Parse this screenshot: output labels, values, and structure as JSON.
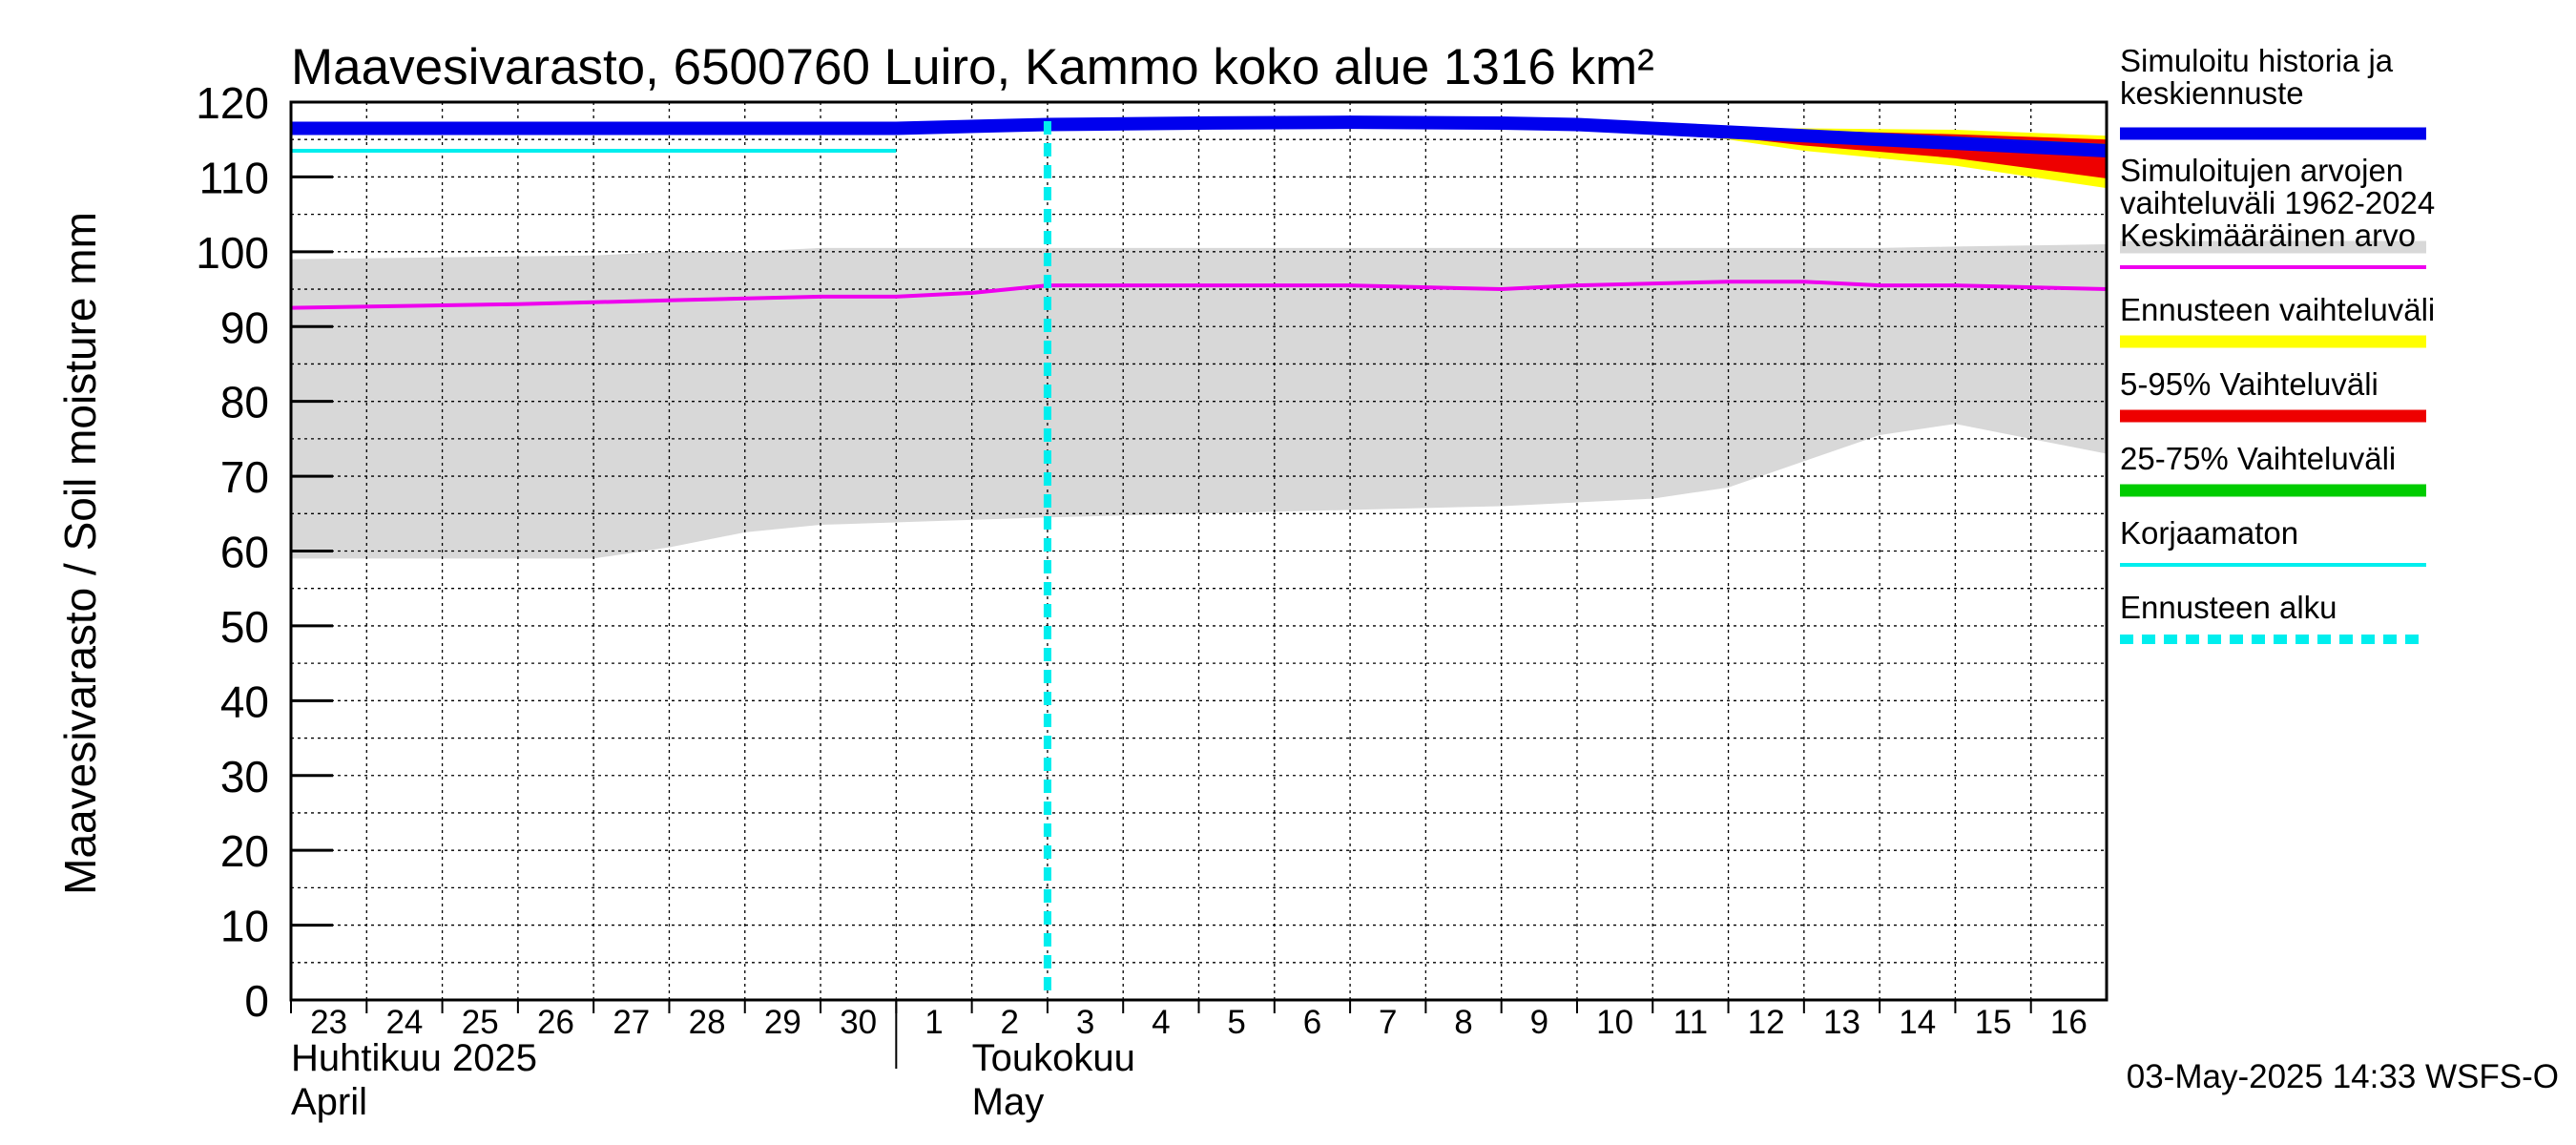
{
  "chart_data": {
    "type": "area",
    "title": "Maavesivarasto, 6500760 Luiro, Kammo koko alue 1316 km²",
    "ylabel": "Maavesivarasto / Soil moisture   mm",
    "ylim": [
      0,
      120
    ],
    "yticks": [
      0,
      10,
      20,
      30,
      40,
      50,
      60,
      70,
      80,
      90,
      100,
      110,
      120
    ],
    "grid": true,
    "legend_position": "right",
    "x_start": "2025-04-23",
    "x_end": "2025-05-17",
    "day_labels": [
      {
        "date": "2025-04-23",
        "label": "23"
      },
      {
        "date": "2025-04-24",
        "label": "24"
      },
      {
        "date": "2025-04-25",
        "label": "25"
      },
      {
        "date": "2025-04-26",
        "label": "26"
      },
      {
        "date": "2025-04-27",
        "label": "27"
      },
      {
        "date": "2025-04-28",
        "label": "28"
      },
      {
        "date": "2025-04-29",
        "label": "29"
      },
      {
        "date": "2025-04-30",
        "label": "30"
      },
      {
        "date": "2025-05-01",
        "label": "1"
      },
      {
        "date": "2025-05-02",
        "label": "2"
      },
      {
        "date": "2025-05-03",
        "label": "3"
      },
      {
        "date": "2025-05-04",
        "label": "4"
      },
      {
        "date": "2025-05-05",
        "label": "5"
      },
      {
        "date": "2025-05-06",
        "label": "6"
      },
      {
        "date": "2025-05-07",
        "label": "7"
      },
      {
        "date": "2025-05-08",
        "label": "8"
      },
      {
        "date": "2025-05-09",
        "label": "9"
      },
      {
        "date": "2025-05-10",
        "label": "10"
      },
      {
        "date": "2025-05-11",
        "label": "11"
      },
      {
        "date": "2025-05-12",
        "label": "12"
      },
      {
        "date": "2025-05-13",
        "label": "13"
      },
      {
        "date": "2025-05-14",
        "label": "14"
      },
      {
        "date": "2025-05-15",
        "label": "15"
      },
      {
        "date": "2025-05-16",
        "label": "16"
      }
    ],
    "month_labels": [
      {
        "date": "2025-04-23",
        "fi": "Huhtikuu  2025",
        "en": "April"
      },
      {
        "date": "2025-05-02",
        "fi": "Toukokuu",
        "en": "May"
      }
    ],
    "month_boundary": "2025-05-01",
    "forecast_start": "2025-05-03",
    "colors": {
      "history": "#0000ee",
      "range": "#d8d8d8",
      "mean": "#ee00ee",
      "forecast_range": "#ffff00",
      "p5_95": "#ee0000",
      "p25_75": "#00cc00",
      "uncorrected": "#00eeee",
      "forecast_start": "#00eeee"
    },
    "series": [
      {
        "key": "range",
        "name": "Simuloitujen arvojen vaihteluväli 1962-2024",
        "x": [
          "2025-04-23",
          "2025-04-27",
          "2025-04-28",
          "2025-04-29",
          "2025-04-30",
          "2025-05-03",
          "2025-05-05",
          "2025-05-09",
          "2025-05-11",
          "2025-05-12",
          "2025-05-14",
          "2025-05-15",
          "2025-05-17"
        ],
        "upper": [
          99,
          99.5,
          100,
          100,
          100.5,
          100.5,
          100.5,
          100.5,
          100.5,
          100.5,
          100.5,
          100.7,
          101
        ],
        "lower": [
          59,
          59,
          60.5,
          62.5,
          63.5,
          64.5,
          65,
          66,
          67,
          68.5,
          75.5,
          77,
          73
        ]
      },
      {
        "key": "forecast_range",
        "name": "Ennusteen vaihteluväli",
        "x": [
          "2025-05-11",
          "2025-05-13",
          "2025-05-15",
          "2025-05-17"
        ],
        "upper": [
          116.5,
          116.5,
          116.3,
          115.5
        ],
        "lower": [
          116.5,
          113.5,
          111.5,
          108.5
        ]
      },
      {
        "key": "p5_95",
        "name": "5-95% Vaihteluväli",
        "x": [
          "2025-05-11",
          "2025-05-13",
          "2025-05-15",
          "2025-05-17"
        ],
        "upper": [
          116.5,
          116.2,
          115.7,
          115.0
        ],
        "lower": [
          116.5,
          114.2,
          112.5,
          109.8
        ]
      },
      {
        "key": "p25_75",
        "name": "25-75% Vaihteluväli",
        "x": [
          "2025-05-11",
          "2025-05-13",
          "2025-05-15",
          "2025-05-17"
        ],
        "upper": [
          116.5,
          116.0,
          115.4,
          114.4
        ],
        "lower": [
          116.5,
          115.6,
          114.6,
          113.4
        ]
      },
      {
        "key": "mean",
        "name": "Keskimääräinen arvo",
        "x": [
          "2025-04-23",
          "2025-04-26",
          "2025-04-28",
          "2025-04-30",
          "2025-05-01",
          "2025-05-02",
          "2025-05-03",
          "2025-05-05",
          "2025-05-07",
          "2025-05-09",
          "2025-05-10",
          "2025-05-12",
          "2025-05-13",
          "2025-05-14",
          "2025-05-15",
          "2025-05-17"
        ],
        "y": [
          92.5,
          93,
          93.5,
          94,
          94,
          94.5,
          95.5,
          95.5,
          95.5,
          95,
          95.5,
          96,
          96,
          95.5,
          95.5,
          95
        ]
      },
      {
        "key": "uncorrected",
        "name": "Korjaamaton",
        "x": [
          "2025-04-23",
          "2025-05-01"
        ],
        "y": [
          113.5,
          113.5
        ]
      },
      {
        "key": "history",
        "name": "Simuloitu historia ja keskiennuste",
        "x": [
          "2025-04-23",
          "2025-04-30",
          "2025-05-01",
          "2025-05-03",
          "2025-05-05",
          "2025-05-07",
          "2025-05-09",
          "2025-05-10",
          "2025-05-11",
          "2025-05-12",
          "2025-05-13",
          "2025-05-15",
          "2025-05-17"
        ],
        "y": [
          116.5,
          116.5,
          116.5,
          117,
          117.2,
          117.3,
          117.2,
          117,
          116.5,
          116,
          115.5,
          114.5,
          113.5
        ]
      }
    ],
    "legend": [
      {
        "key": "history",
        "text": [
          "Simuloitu historia ja",
          "keskiennuste"
        ],
        "style": "solid"
      },
      {
        "key": "range",
        "text": [
          "Simuloitujen arvojen",
          "vaihteluväli 1962-2024"
        ],
        "style": "solid"
      },
      {
        "key": "mean",
        "text": [
          "Keskimääräinen arvo"
        ],
        "style": "thin"
      },
      {
        "key": "forecast_range",
        "text": [
          "Ennusteen vaihteluväli"
        ],
        "style": "solid"
      },
      {
        "key": "p5_95",
        "text": [
          "5-95% Vaihteluväli"
        ],
        "style": "solid"
      },
      {
        "key": "p25_75",
        "text": [
          "25-75% Vaihteluväli"
        ],
        "style": "solid"
      },
      {
        "key": "uncorrected",
        "text": [
          "Korjaamaton"
        ],
        "style": "thin"
      },
      {
        "key": "forecast_start",
        "text": [
          "Ennusteen alku"
        ],
        "style": "dashed"
      }
    ],
    "footer": "03-May-2025 14:33 WSFS-O"
  }
}
